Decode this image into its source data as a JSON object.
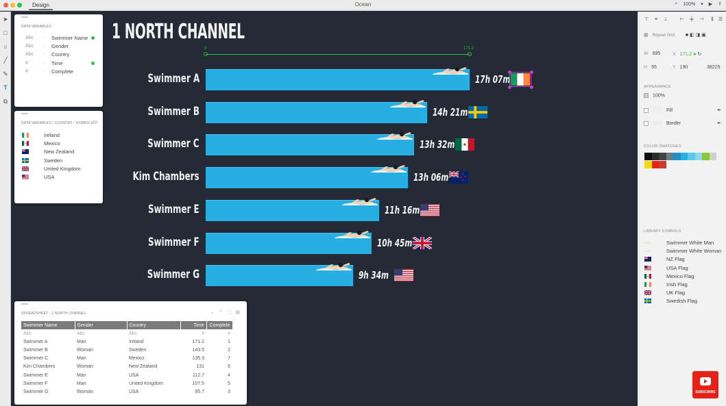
{
  "window": {
    "tab": "Design",
    "title": "Ocean",
    "zoom": "100%"
  },
  "chart_data": {
    "type": "bar",
    "title": "1 NORTH CHANNEL",
    "xlim": [
      0,
      171.2
    ],
    "axis_guide": {
      "start_label": "0",
      "end_label": "171.2"
    },
    "categories": [
      "Swimmer A",
      "Swimmer B",
      "Swimmer C",
      "Kim Chambers",
      "Swimmer E",
      "Swimmer F",
      "Swimmer G"
    ],
    "values": [
      171.2,
      143.5,
      135.3,
      131,
      112.7,
      107.5,
      95.7
    ],
    "time_labels": [
      "17h 07m",
      "14h 21m",
      "13h 32m",
      "13h 06m",
      "11h 16m",
      "10h 45m",
      "9h 34m"
    ],
    "flags": [
      "ireland",
      "sweden",
      "mexico",
      "new-zealand",
      "usa",
      "uk",
      "usa"
    ],
    "bar_color": "#27aee2"
  },
  "data_variables": {
    "title": "DATA VARIABLES",
    "items": [
      {
        "type": "Abc",
        "name": "Swimmer Name",
        "bound": true
      },
      {
        "type": "Abc",
        "name": "Gender",
        "bound": false
      },
      {
        "type": "Abc",
        "name": "Country",
        "bound": false
      },
      {
        "type": "#",
        "name": "Time",
        "bound": true
      },
      {
        "type": "#",
        "name": "Complete",
        "bound": false
      }
    ]
  },
  "country_symbols": {
    "title": "DATA VARIABLES / COUNTRY / SYMBOLS",
    "items": [
      {
        "flag": "ireland",
        "name": "Ireland"
      },
      {
        "flag": "mexico",
        "name": "Mexico"
      },
      {
        "flag": "new-zealand",
        "name": "New Zealand"
      },
      {
        "flag": "sweden",
        "name": "Sweden"
      },
      {
        "flag": "uk",
        "name": "United Kingdom"
      },
      {
        "flag": "usa",
        "name": "USA"
      }
    ]
  },
  "spreadsheet": {
    "title": "SPREADSHEET - 1 NORTH CHANNEL",
    "columns": [
      "Swimmer Name",
      "Gender",
      "Country",
      "Time",
      "Complete"
    ],
    "types": [
      "Abc",
      "Abc",
      "Abc",
      "#",
      "#"
    ],
    "rows": [
      [
        "Swimmer A",
        "Man",
        "Ireland",
        "171.2",
        "1"
      ],
      [
        "Swimmer B",
        "Woman",
        "Sweden",
        "143.5",
        "2"
      ],
      [
        "Swimmer C",
        "Man",
        "Mexico",
        "135.3",
        "7"
      ],
      [
        "Kim Chambers",
        "Woman",
        "New Zealand",
        "131",
        "6"
      ],
      [
        "Swimmer E",
        "Man",
        "USA",
        "112.7",
        "4"
      ],
      [
        "Swimmer F",
        "Man",
        "United Kingdom",
        "107.5",
        "5"
      ],
      [
        "Swimmer G",
        "Woman",
        "USA",
        "95.7",
        "3"
      ]
    ]
  },
  "inspector": {
    "repeat_grid": "Repeat Grid",
    "w_label": "W",
    "w_value": "695",
    "x_label": "X",
    "x_value": "171.2",
    "h_label": "H",
    "h_value": "55",
    "y_label": "Y",
    "y_value": "190",
    "z_value": "38225",
    "appearance_title": "APPEARANCE",
    "opacity": "100%",
    "fill_label": "Fill",
    "border_label": "Border",
    "color_swatches_title": "COLOR SWATCHES",
    "swatches": [
      "#0d0d0d",
      "#2b2b2b",
      "#444444",
      "#6b7b85",
      "#1e90c8",
      "#27aee2",
      "#5cc8ee",
      "#8ed8f2",
      "#8cc63f",
      "#d0d0d0",
      "#f5d90a",
      "#e8241a",
      "#cc3b2f"
    ],
    "library_symbols_title": "LIBRARY SYMBOLS",
    "symbols": [
      {
        "icon": "swimmer-man",
        "name": "Swimmer White Man"
      },
      {
        "icon": "swimmer-woman",
        "name": "Swimmer White Woman"
      },
      {
        "icon": "new-zealand",
        "name": "NZ Flag"
      },
      {
        "icon": "usa",
        "name": "USA Flag"
      },
      {
        "icon": "mexico",
        "name": "Mexico Flag"
      },
      {
        "icon": "ireland",
        "name": "Irish Flag"
      },
      {
        "icon": "uk",
        "name": "UK Flag"
      },
      {
        "icon": "sweden",
        "name": "Swedish Flag"
      }
    ]
  },
  "youtube": {
    "label": "SUBSCRIBE"
  }
}
